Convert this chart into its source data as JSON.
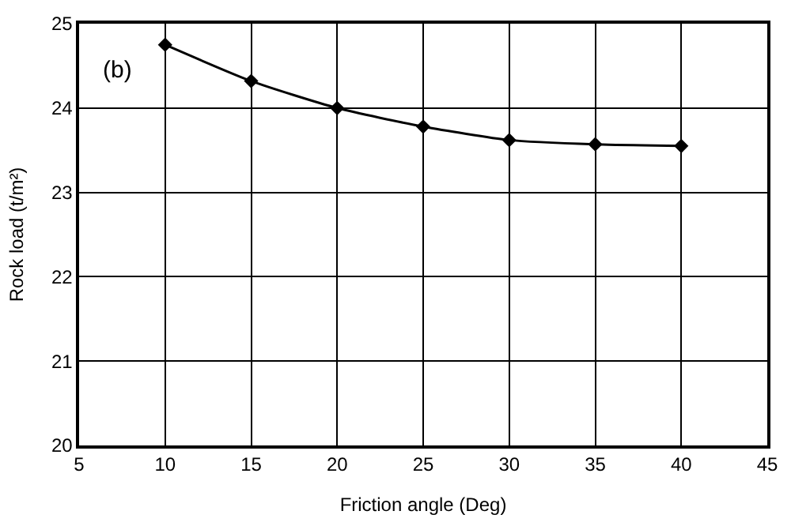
{
  "chart_data": {
    "type": "line",
    "xlabel": "Friction angle (Deg)",
    "ylabel": "Rock load (t/m²)",
    "annotations": [
      "(b)"
    ],
    "x": [
      10,
      15,
      20,
      25,
      30,
      35,
      40
    ],
    "series": [
      {
        "color": "#000000",
        "values": [
          24.75,
          24.32,
          24.0,
          23.78,
          23.62,
          23.57,
          23.55
        ]
      }
    ],
    "xlim": [
      5,
      45
    ],
    "xticks": [
      5,
      10,
      15,
      20,
      25,
      30,
      35,
      40,
      45
    ],
    "ylim": [
      20,
      25
    ],
    "yticks": [
      20,
      21,
      22,
      23,
      24,
      25
    ],
    "grid": true,
    "legend": false,
    "marker": "diamond",
    "line_style": "solid"
  }
}
